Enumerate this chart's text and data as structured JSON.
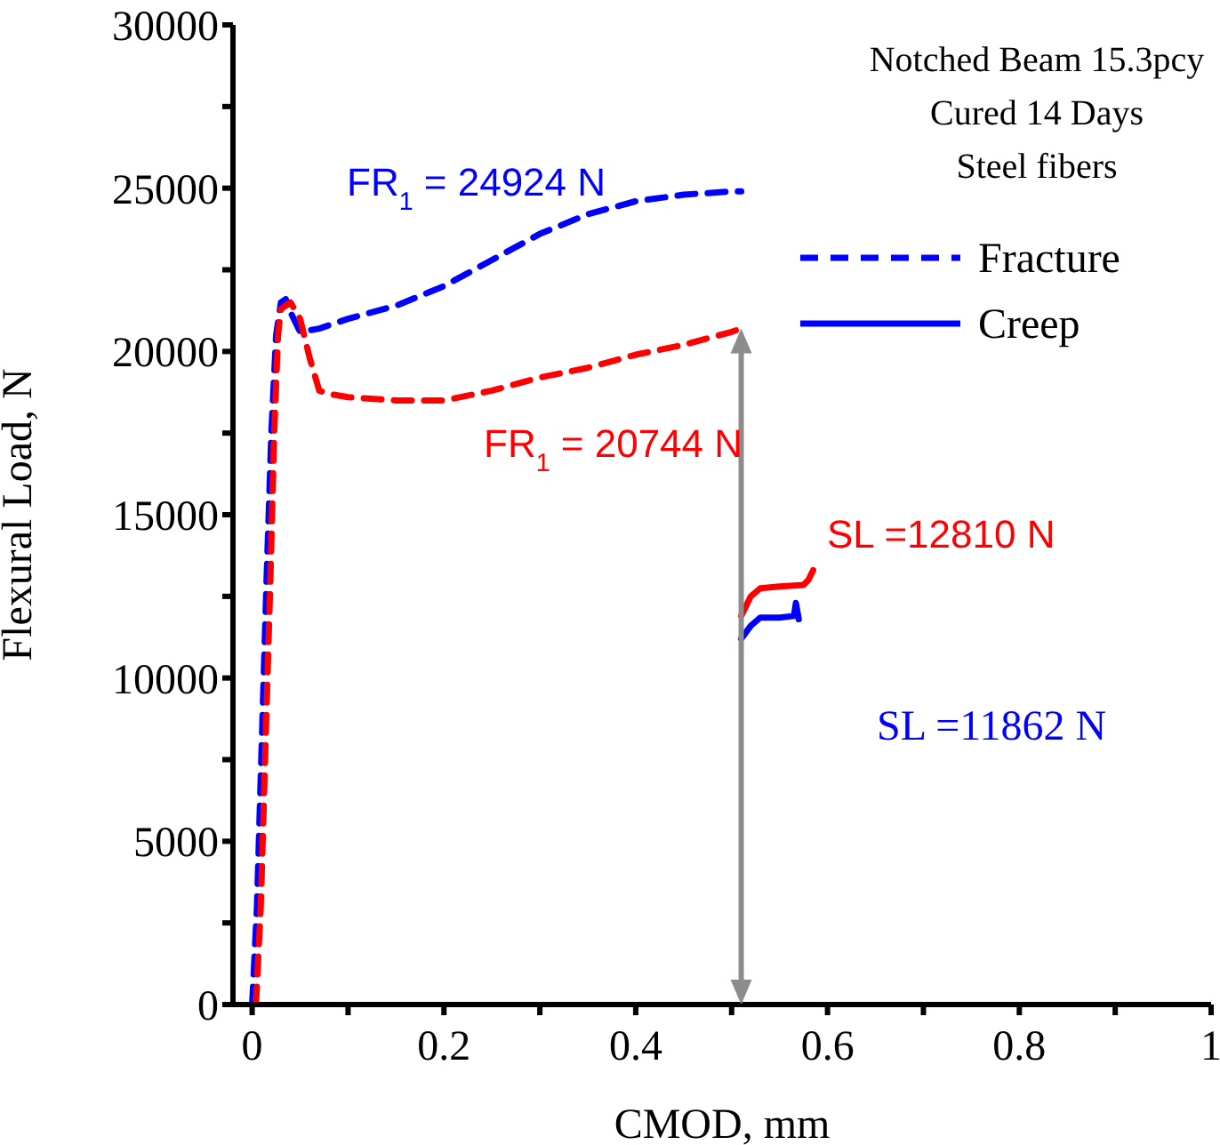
{
  "chart_data": {
    "type": "line",
    "xlabel": "CMOD, mm",
    "ylabel": "Flexural Load, N",
    "xlim": [
      -0.02,
      1
    ],
    "ylim": [
      0,
      30000
    ],
    "xticks": [
      0,
      {
        "value": 0.1,
        "label": null
      },
      0.2,
      {
        "value": 0.3,
        "label": null
      },
      0.4,
      {
        "value": 0.5,
        "label": null
      },
      0.6,
      {
        "value": 0.7,
        "label": null
      },
      0.8,
      {
        "value": 0.9,
        "label": null
      },
      1
    ],
    "yticks": [
      0,
      {
        "value": 2500,
        "label": null
      },
      5000,
      {
        "value": 7500,
        "label": null
      },
      10000,
      {
        "value": 12500,
        "label": null
      },
      15000,
      {
        "value": 17500,
        "label": null
      },
      20000,
      {
        "value": 22500,
        "label": null
      },
      25000,
      {
        "value": 27500,
        "label": null
      },
      30000
    ],
    "legend": "top right",
    "marker": "none",
    "series": [
      {
        "name": "Fracture",
        "color": "#0000ff",
        "line_style": "dashed",
        "x": [
          0,
          0.005,
          0.01,
          0.015,
          0.02,
          0.025,
          0.03,
          0.035,
          0.04,
          0.05,
          0.07,
          0.1,
          0.15,
          0.2,
          0.25,
          0.3,
          0.35,
          0.4,
          0.45,
          0.5,
          0.51
        ],
        "values": [
          0,
          3000,
          8000,
          13000,
          17500,
          20500,
          21500,
          21600,
          21200,
          20600,
          20700,
          21000,
          21400,
          22000,
          22800,
          23600,
          24200,
          24600,
          24800,
          24900,
          24900
        ]
      },
      {
        "color": "#ff0000",
        "line_style": "dashed",
        "x": [
          0.004,
          0.009,
          0.014,
          0.019,
          0.023,
          0.027,
          0.03,
          0.04,
          0.05,
          0.06,
          0.07,
          0.08,
          0.1,
          0.15,
          0.2,
          0.25,
          0.3,
          0.35,
          0.4,
          0.45,
          0.5,
          0.51
        ],
        "values": [
          0,
          3000,
          8000,
          13000,
          17500,
          20500,
          21300,
          21500,
          21000,
          19800,
          18800,
          18700,
          18600,
          18500,
          18500,
          18800,
          19200,
          19500,
          19900,
          20200,
          20600,
          20700
        ]
      },
      {
        "name": "Creep",
        "color": "#0000ff",
        "line_style": "solid",
        "x": [
          0.51,
          0.52,
          0.53,
          0.55,
          0.565,
          0.567,
          0.57
        ],
        "values": [
          11200,
          11600,
          11850,
          11850,
          11900,
          12300,
          11800
        ]
      },
      {
        "color": "#ff0000",
        "line_style": "solid",
        "x": [
          0.51,
          0.52,
          0.53,
          0.55,
          0.575,
          0.58,
          0.585
        ],
        "values": [
          11900,
          12500,
          12750,
          12800,
          12850,
          13000,
          13300
        ]
      }
    ],
    "annotations": [
      "Notched Beam 15.3pcy",
      "Cured 14 Days",
      "Steel fibers",
      "FR$_{1}$ = 24924 N",
      "FR$_{1}$ = 20744 N",
      "SL =12810 N",
      "SL =11862 N"
    ]
  }
}
